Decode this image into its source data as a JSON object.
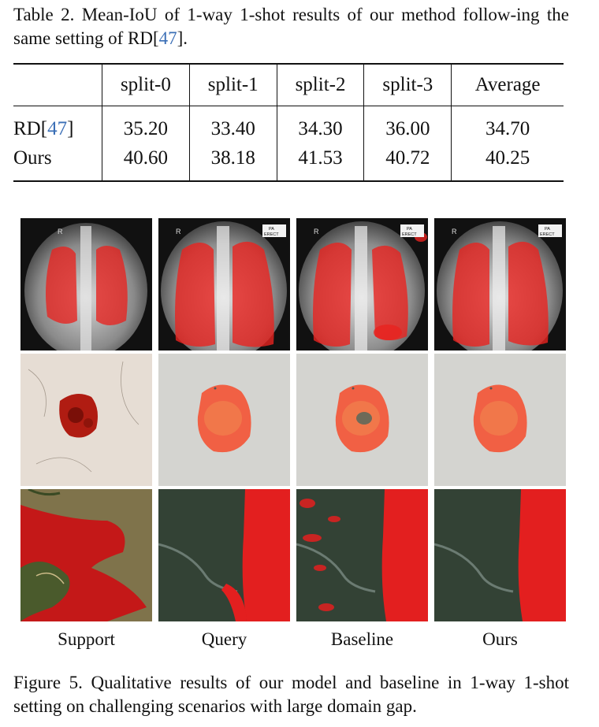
{
  "table_caption": {
    "prefix": "Table 2. Mean-IoU of 1-way 1-shot results of our method follow-ing the same setting of RD[",
    "cite": "47",
    "suffix": "]."
  },
  "table": {
    "headers": [
      "split-0",
      "split-1",
      "split-2",
      "split-3",
      "Average"
    ],
    "rows": [
      {
        "label_prefix": "RD[",
        "label_cite": "47",
        "label_suffix": "]",
        "values": [
          "35.20",
          "33.40",
          "34.30",
          "36.00",
          "34.70"
        ]
      },
      {
        "label_prefix": "Ours",
        "label_cite": "",
        "label_suffix": "",
        "values": [
          "40.60",
          "38.18",
          "41.53",
          "40.72",
          "40.25"
        ]
      }
    ]
  },
  "figure": {
    "columns": [
      "Support",
      "Query",
      "Baseline",
      "Ours"
    ],
    "xray_marker": "R",
    "xray_tag_line1": "PA",
    "xray_tag_line2": "ERECT",
    "mask_color": "#e8231f"
  },
  "figure_caption": "Figure 5. Qualitative results of our model and baseline in 1-way 1-shot setting on challenging scenarios with large domain gap."
}
